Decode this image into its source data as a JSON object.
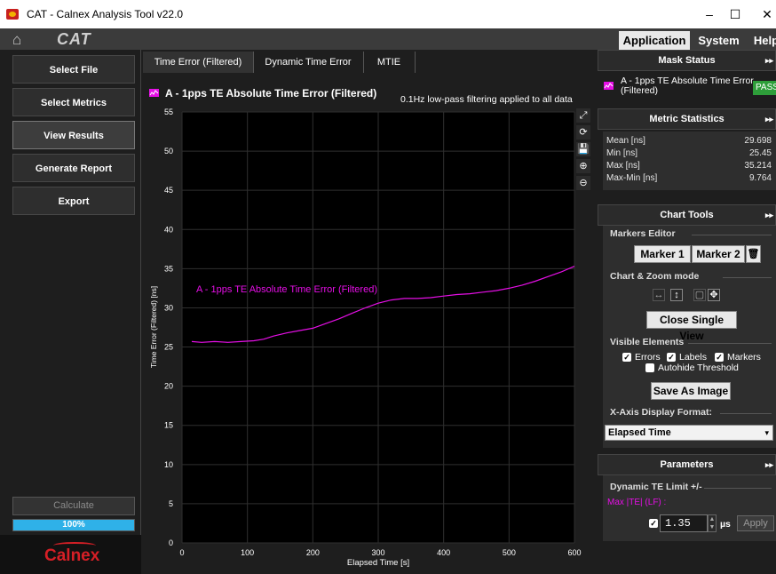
{
  "window": {
    "title": "CAT - Calnex Analysis Tool v22.0",
    "minimize": "–",
    "maximize": "☐",
    "close": "✕"
  },
  "topbar": {
    "logo": "CAT",
    "tabs": [
      "Application",
      "System",
      "Help"
    ]
  },
  "sidebar": {
    "buttons": [
      "Select File",
      "Select Metrics",
      "View Results",
      "Generate Report",
      "Export"
    ],
    "active": "View Results",
    "calculate_label": "Calculate",
    "progress_percent": 100,
    "progress_label": "100%",
    "brand": "Calnex"
  },
  "chart_tabs": [
    "Time Error (Filtered)",
    "Dynamic Time Error",
    "MTIE"
  ],
  "chart_header": {
    "title": "A - 1pps TE Absolute Time Error (Filtered)",
    "note": "0.1Hz low-pass filtering applied to all data"
  },
  "chart_tools": [
    "⤢",
    "⟳",
    "💾",
    "⊕",
    "⊖"
  ],
  "chart_data": {
    "type": "line",
    "xlabel": "Elapsed Time [s]",
    "ylabel": "Time Error (Filtered) [ns]",
    "xlim": [
      0,
      600
    ],
    "ylim": [
      0,
      55
    ],
    "xticks": [
      0,
      100,
      200,
      300,
      400,
      500,
      600
    ],
    "yticks": [
      0,
      5,
      10,
      15,
      20,
      25,
      30,
      35,
      40,
      45,
      50,
      55
    ],
    "grid": true,
    "series": [
      {
        "name": "A - 1pps TE Absolute Time Error (Filtered)",
        "color": "#e60fe6",
        "x": [
          15,
          30,
          50,
          70,
          90,
          110,
          125,
          140,
          160,
          180,
          200,
          220,
          240,
          260,
          280,
          300,
          320,
          340,
          360,
          380,
          400,
          420,
          440,
          460,
          480,
          500,
          520,
          540,
          560,
          580,
          600
        ],
        "y": [
          25.7,
          25.6,
          25.7,
          25.6,
          25.7,
          25.8,
          26.0,
          26.4,
          26.8,
          27.1,
          27.4,
          28.0,
          28.6,
          29.3,
          30.0,
          30.6,
          31.0,
          31.2,
          31.2,
          31.3,
          31.5,
          31.7,
          31.8,
          32.0,
          32.2,
          32.5,
          32.9,
          33.4,
          34.0,
          34.6,
          35.3
        ]
      }
    ],
    "series_label_on_plot": "A - 1pps TE Absolute Time Error (Filtered)"
  },
  "right": {
    "mask_status": {
      "header": "Mask Status",
      "item": "A - 1pps TE Absolute Time Error (Filtered)",
      "badge": "PASS",
      "badge_color": "#2e9e3a"
    },
    "metric_stats": {
      "header": "Metric Statistics",
      "rows": [
        {
          "label": "Mean [ns]",
          "value": "29.698"
        },
        {
          "label": "Min [ns]",
          "value": "25.45"
        },
        {
          "label": "Max [ns]",
          "value": "35.214"
        },
        {
          "label": "Max-Min [ns]",
          "value": "9.764"
        }
      ]
    },
    "chart_tools": {
      "header": "Chart Tools",
      "markers_editor": "Markers Editor",
      "marker1": "Marker 1",
      "marker2": "Marker 2",
      "chart_zoom": "Chart & Zoom mode",
      "close_single_view": "Close Single View",
      "visible_elements": "Visible Elements",
      "errors": "Errors",
      "labels": "Labels",
      "markers": "Markers",
      "autohide": "Autohide Threshold",
      "save_image": "Save As Image",
      "x_axis_format": "X-Axis Display Format:",
      "x_axis_value": "Elapsed Time"
    },
    "parameters": {
      "header": "Parameters",
      "dynamic_te": "Dynamic TE Limit +/-",
      "max_te": "Max |TE| (LF) :",
      "value": "1.35",
      "unit": "µs",
      "apply": "Apply"
    }
  }
}
